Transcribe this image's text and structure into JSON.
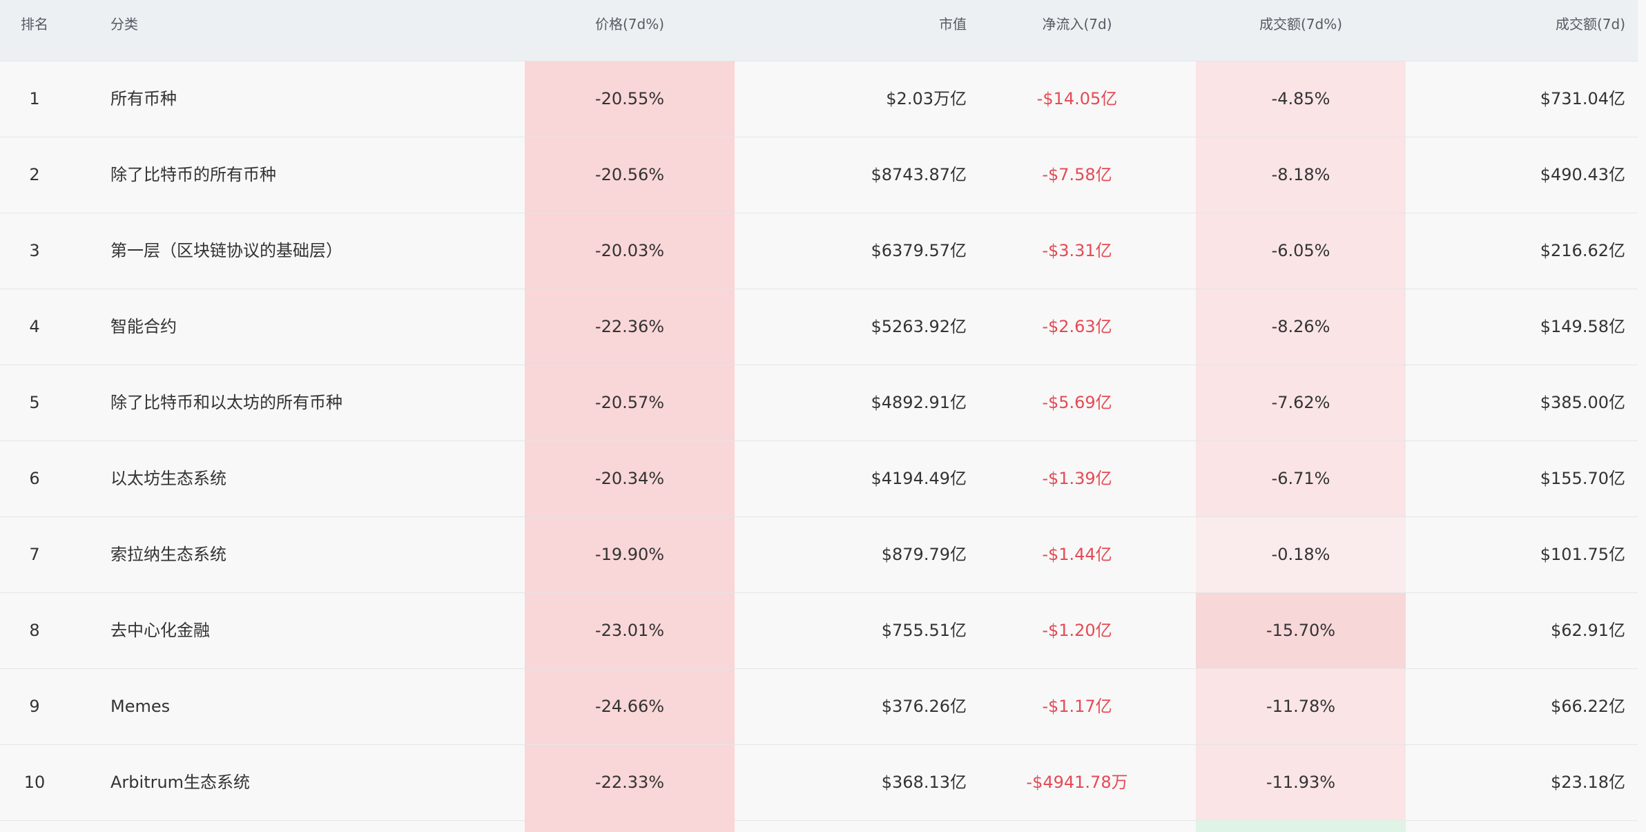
{
  "columns": {
    "rank": "排名",
    "category": "分类",
    "price_7d": "价格(7d%)",
    "market_cap": "市值",
    "net_inflow": "净流入(7d)",
    "volume_change": "成交额(7d%)",
    "volume": "成交额(7d)"
  },
  "colors": {
    "negative_text": "#e54a54",
    "price_cell_bg": "#f9d6d7",
    "volume_change_bg_light": "#fae4e5",
    "volume_change_bg_lighter": "#faecec",
    "volume_change_bg_strong": "#f7d7d8",
    "positive_cell_bg": "#dff3e7"
  },
  "rows": [
    {
      "rank": "1",
      "category": "所有币种",
      "price_7d": "-20.55%",
      "market_cap": "$2.03万亿",
      "net_inflow": "-$14.05亿",
      "volume_change": "-4.85%",
      "volume": "$731.04亿"
    },
    {
      "rank": "2",
      "category": "除了比特币的所有币种",
      "price_7d": "-20.56%",
      "market_cap": "$8743.87亿",
      "net_inflow": "-$7.58亿",
      "volume_change": "-8.18%",
      "volume": "$490.43亿"
    },
    {
      "rank": "3",
      "category": "第一层（区块链协议的基础层）",
      "price_7d": "-20.03%",
      "market_cap": "$6379.57亿",
      "net_inflow": "-$3.31亿",
      "volume_change": "-6.05%",
      "volume": "$216.62亿"
    },
    {
      "rank": "4",
      "category": "智能合约",
      "price_7d": "-22.36%",
      "market_cap": "$5263.92亿",
      "net_inflow": "-$2.63亿",
      "volume_change": "-8.26%",
      "volume": "$149.58亿"
    },
    {
      "rank": "5",
      "category": "除了比特币和以太坊的所有币种",
      "price_7d": "-20.57%",
      "market_cap": "$4892.91亿",
      "net_inflow": "-$5.69亿",
      "volume_change": "-7.62%",
      "volume": "$385.00亿"
    },
    {
      "rank": "6",
      "category": "以太坊生态系统",
      "price_7d": "-20.34%",
      "market_cap": "$4194.49亿",
      "net_inflow": "-$1.39亿",
      "volume_change": "-6.71%",
      "volume": "$155.70亿"
    },
    {
      "rank": "7",
      "category": "索拉纳生态系统",
      "price_7d": "-19.90%",
      "market_cap": "$879.79亿",
      "net_inflow": "-$1.44亿",
      "volume_change": "-0.18%",
      "volume": "$101.75亿"
    },
    {
      "rank": "8",
      "category": "去中心化金融",
      "price_7d": "-23.01%",
      "market_cap": "$755.51亿",
      "net_inflow": "-$1.20亿",
      "volume_change": "-15.70%",
      "volume": "$62.91亿"
    },
    {
      "rank": "9",
      "category": "Memes",
      "price_7d": "-24.66%",
      "market_cap": "$376.26亿",
      "net_inflow": "-$1.17亿",
      "volume_change": "-11.78%",
      "volume": "$66.22亿"
    },
    {
      "rank": "10",
      "category": "Arbitrum生态系统",
      "price_7d": "-22.33%",
      "market_cap": "$368.13亿",
      "net_inflow": "-$4941.78万",
      "volume_change": "-11.93%",
      "volume": "$23.18亿"
    }
  ]
}
